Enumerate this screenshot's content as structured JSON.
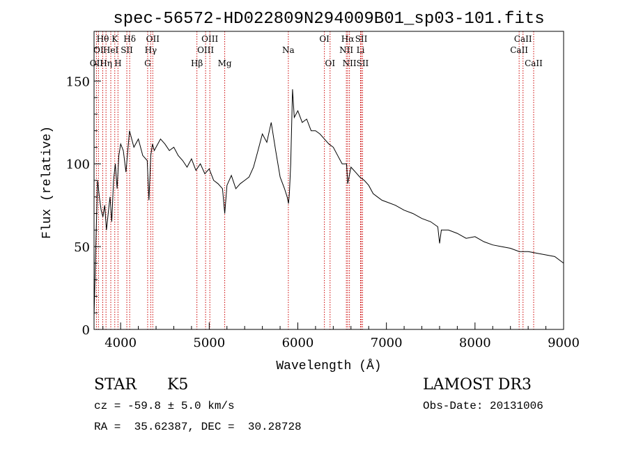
{
  "chart_data": {
    "type": "line",
    "title": "spec-56572-HD022809N294009B01_sp03-101.fits",
    "xlabel": "Wavelength (Å)",
    "ylabel": "Flux (relative)",
    "xlim": [
      3700,
      9000
    ],
    "ylim": [
      0,
      180
    ],
    "xticks": [
      4000,
      5000,
      6000,
      7000,
      8000,
      9000
    ],
    "xtick_labels": [
      "4000",
      "5000",
      "6000",
      "7000",
      "8000",
      "9000"
    ],
    "yticks": [
      0,
      50,
      100,
      150
    ],
    "ytick_labels": [
      "0",
      "50",
      "100",
      "150"
    ],
    "grid": false,
    "series": [
      {
        "name": "flux",
        "x": [
          3700,
          3720,
          3740,
          3760,
          3780,
          3800,
          3820,
          3840,
          3860,
          3880,
          3900,
          3920,
          3940,
          3960,
          3980,
          4000,
          4030,
          4060,
          4100,
          4150,
          4200,
          4250,
          4300,
          4320,
          4340,
          4360,
          4380,
          4400,
          4450,
          4500,
          4550,
          4600,
          4650,
          4700,
          4750,
          4800,
          4850,
          4900,
          4950,
          5000,
          5050,
          5100,
          5150,
          5175,
          5200,
          5250,
          5300,
          5350,
          5400,
          5450,
          5500,
          5550,
          5600,
          5650,
          5700,
          5750,
          5800,
          5850,
          5880,
          5895,
          5905,
          5920,
          5940,
          5960,
          6000,
          6050,
          6100,
          6150,
          6200,
          6250,
          6300,
          6350,
          6400,
          6450,
          6500,
          6550,
          6563,
          6600,
          6650,
          6700,
          6750,
          6800,
          6850,
          6900,
          6950,
          7000,
          7100,
          7200,
          7300,
          7400,
          7500,
          7580,
          7600,
          7620,
          7700,
          7800,
          7900,
          8000,
          8100,
          8200,
          8300,
          8400,
          8500,
          8600,
          8700,
          8800,
          8900,
          9000
        ],
        "y": [
          8,
          50,
          90,
          80,
          72,
          68,
          75,
          60,
          70,
          80,
          65,
          90,
          100,
          85,
          105,
          112,
          108,
          95,
          120,
          110,
          115,
          105,
          102,
          78,
          105,
          112,
          108,
          110,
          115,
          112,
          108,
          110,
          105,
          102,
          98,
          103,
          96,
          100,
          94,
          97,
          90,
          88,
          85,
          70,
          87,
          93,
          85,
          88,
          90,
          92,
          98,
          108,
          118,
          113,
          125,
          108,
          92,
          85,
          80,
          76,
          82,
          100,
          145,
          128,
          132,
          125,
          127,
          120,
          120,
          118,
          115,
          112,
          110,
          105,
          100,
          100,
          88,
          98,
          95,
          92,
          90,
          87,
          82,
          80,
          78,
          77,
          75,
          72,
          70,
          67,
          65,
          62,
          52,
          60,
          60,
          58,
          55,
          56,
          53,
          51,
          50,
          49,
          47,
          47,
          46,
          45,
          44,
          40
        ]
      }
    ],
    "line_markers": [
      {
        "label": "Hθ",
        "x": 3798,
        "row": 1
      },
      {
        "label": "OI",
        "x": 3750,
        "row": 2
      },
      {
        "label": "OII",
        "x": 3727,
        "row": 3
      },
      {
        "label": "K",
        "x": 3934,
        "row": 1
      },
      {
        "label": "HeI",
        "x": 3889,
        "row": 2
      },
      {
        "label": "Hη",
        "x": 3835,
        "row": 3
      },
      {
        "label": "Hδ",
        "x": 4102,
        "row": 1
      },
      {
        "label": "SII",
        "x": 4070,
        "row": 2
      },
      {
        "label": "H",
        "x": 3970,
        "row": 3
      },
      {
        "label": "OII",
        "x": 4363,
        "row": 1
      },
      {
        "label": "Hγ",
        "x": 4340,
        "row": 2
      },
      {
        "label": "G",
        "x": 4305,
        "row": 3
      },
      {
        "label": "OIII",
        "x": 5007,
        "row": 1
      },
      {
        "label": "OIII",
        "x": 4959,
        "row": 2
      },
      {
        "label": "Hβ",
        "x": 4861,
        "row": 3
      },
      {
        "label": "Mg",
        "x": 5175,
        "row": 3
      },
      {
        "label": "Na",
        "x": 5893,
        "row": 2
      },
      {
        "label": "OI",
        "x": 6300,
        "row": 1
      },
      {
        "label": "OI",
        "x": 6364,
        "row": 3
      },
      {
        "label": "Hα",
        "x": 6563,
        "row": 1
      },
      {
        "label": "NII",
        "x": 6548,
        "row": 2
      },
      {
        "label": "NII",
        "x": 6583,
        "row": 3
      },
      {
        "label": "SII",
        "x": 6716,
        "row": 1
      },
      {
        "label": "Li",
        "x": 6708,
        "row": 2
      },
      {
        "label": "SII",
        "x": 6731,
        "row": 3
      },
      {
        "label": "CaII",
        "x": 8542,
        "row": 1
      },
      {
        "label": "CaII",
        "x": 8498,
        "row": 2
      },
      {
        "label": "CaII",
        "x": 8662,
        "row": 3
      }
    ]
  },
  "footer": {
    "object_class": "STAR",
    "subclass": "K5",
    "survey": "LAMOST DR3",
    "redshift": "cz = -59.8 ± 5.0 km/s",
    "obs_date": "Obs-Date: 20131006",
    "coords": "RA =  35.62387, DEC =  30.28728"
  },
  "colors": {
    "axis": "#000000",
    "spectrum": "#000000",
    "marker_line": "#cc0000"
  }
}
